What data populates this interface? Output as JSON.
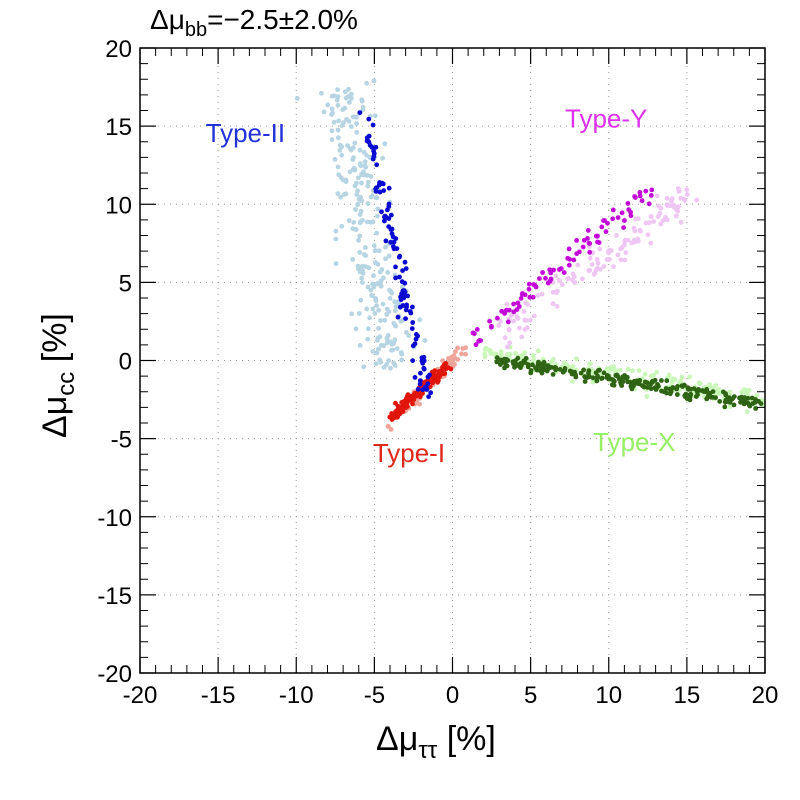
{
  "chart_data": {
    "type": "scatter",
    "title": "Δμbb=−2.5±2.0%",
    "title_parts": {
      "prefix": "Δμ",
      "sub": "bb",
      "rest": "=−2.5±2.0%"
    },
    "xlabel": "Δμττ [%]",
    "xlabel_parts": {
      "prefix": "Δμ",
      "sub": "ττ",
      "rest": " [%]"
    },
    "ylabel": "Δμcc [%]",
    "ylabel_parts": {
      "prefix": "Δμ",
      "sub": "cc",
      "rest": " [%]"
    },
    "xlim": [
      -20,
      20
    ],
    "ylim": [
      -20,
      20
    ],
    "xticks": [
      -20,
      -15,
      -10,
      -5,
      0,
      5,
      10,
      15,
      20
    ],
    "yticks": [
      -20,
      -15,
      -10,
      -5,
      0,
      5,
      10,
      15,
      20
    ],
    "grid": true,
    "series": [
      {
        "name": "Type-I",
        "label": "Type-I",
        "label_color": "#e0281a",
        "label_at": [
          -5.1,
          -6.5
        ],
        "color_light": "#f0a59a",
        "color_dark": "#e0150a",
        "light": {
          "from": [
            -4.2,
            -4.2
          ],
          "to": [
            0.8,
            0.9
          ],
          "count": 70,
          "spread": 0.35
        },
        "dark": {
          "from": [
            -4.0,
            -3.7
          ],
          "to": [
            -0.3,
            -0.3
          ],
          "count": 150,
          "spread": 0.25
        }
      },
      {
        "name": "Type-II",
        "label": "Type-II",
        "label_color": "#2232d8",
        "label_at": [
          -15.8,
          14.0
        ],
        "color_light": "#b6d4e2",
        "color_dark": "#0a0ad0",
        "light": {
          "from": [
            -7.2,
            17.5
          ],
          "to": [
            -3.8,
            -0.5
          ],
          "count": 260,
          "spread": 1.35
        },
        "dark": {
          "from": [
            -5.7,
            16.0
          ],
          "to": [
            -1.5,
            -2.5
          ],
          "count": 110,
          "spread": 0.45
        }
      },
      {
        "name": "Type-X",
        "label": "Type-X",
        "label_color": "#96ef64",
        "label_at": [
          9.0,
          -5.8
        ],
        "color_light": "#c9f7b8",
        "color_dark": "#2f6414",
        "light": {
          "from": [
            2.0,
            0.4
          ],
          "to": [
            20.0,
            -2.6
          ],
          "count": 220,
          "spread": 0.55
        },
        "dark": {
          "from": [
            2.8,
            0.0
          ],
          "to": [
            19.8,
            -2.8
          ],
          "count": 230,
          "spread": 0.35
        }
      },
      {
        "name": "Type-Y",
        "label": "Type-Y",
        "label_color": "#dc33ea",
        "label_at": [
          7.2,
          14.9
        ],
        "color_light": "#efc6f3",
        "color_dark": "#c40ad8",
        "light": {
          "from": [
            3.0,
            1.5
          ],
          "to": [
            15.5,
            11.0
          ],
          "count": 130,
          "spread": 0.75
        },
        "dark": {
          "from": [
            1.0,
            1.0
          ],
          "to": [
            12.8,
            11.0
          ],
          "count": 90,
          "spread": 0.45
        }
      }
    ]
  }
}
